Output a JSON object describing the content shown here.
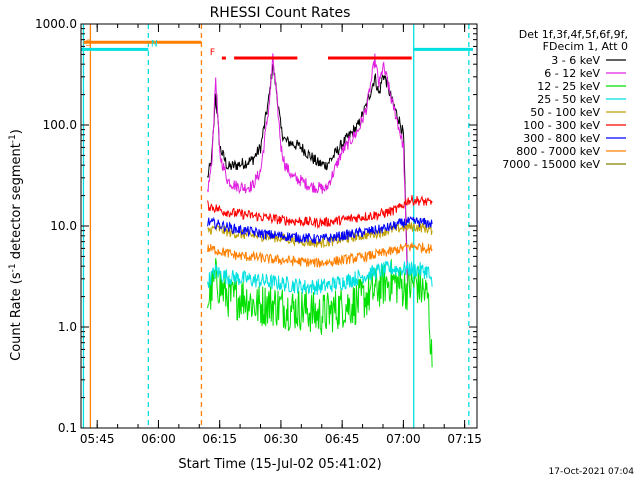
{
  "chart_data": {
    "type": "line",
    "title": "RHESSI Count Rates",
    "xlabel": "Start Time (15-Jul-02 05:41:02)",
    "ylabel_parts": [
      "Count Rate (s",
      "-1",
      " detector segment",
      "-1",
      ")"
    ],
    "yscale": "log",
    "ylim": [
      0.1,
      1000.0
    ],
    "xlim": [
      0.0,
      97.0
    ],
    "yticks": [
      {
        "v": 1000.0,
        "label": "1000.0"
      },
      {
        "v": 100.0,
        "label": "100.0"
      },
      {
        "v": 10.0,
        "label": "10.0"
      },
      {
        "v": 1.0,
        "label": "1.0"
      },
      {
        "v": 0.1,
        "label": "0.1"
      }
    ],
    "xticks": [
      {
        "v": 3.97,
        "label": "05:45"
      },
      {
        "v": 18.97,
        "label": "06:00"
      },
      {
        "v": 33.97,
        "label": "06:15"
      },
      {
        "v": 48.97,
        "label": "06:30"
      },
      {
        "v": 63.97,
        "label": "06:45"
      },
      {
        "v": 78.97,
        "label": "07:00"
      },
      {
        "v": 93.97,
        "label": "07:15"
      }
    ],
    "legend_header": [
      "Det 1f,3f,4f,5f,6f,9f,",
      "FDecim 1, Att 0"
    ],
    "legend_position": "right",
    "series": [
      {
        "name": "3 - 6 keV",
        "color": "#000000",
        "x": [
          31,
          32,
          33,
          34,
          36,
          38,
          40,
          42,
          44,
          46,
          47,
          48,
          49,
          50,
          52,
          54,
          56,
          58,
          60,
          62,
          64,
          66,
          68,
          70,
          72,
          73,
          74,
          75,
          76,
          77,
          78,
          79,
          80
        ],
        "y": [
          30,
          45,
          200,
          60,
          38,
          40,
          42,
          45,
          60,
          180,
          400,
          200,
          90,
          70,
          65,
          60,
          50,
          42,
          40,
          50,
          65,
          80,
          100,
          160,
          300,
          200,
          320,
          260,
          180,
          140,
          110,
          80,
          2.7
        ]
      },
      {
        "name": "6 - 12 keV",
        "color": "#e020e0",
        "x": [
          31,
          32,
          33,
          34,
          36,
          38,
          40,
          42,
          44,
          46,
          47,
          48,
          49,
          50,
          52,
          54,
          56,
          58,
          60,
          62,
          64,
          66,
          68,
          70,
          72,
          73,
          74,
          75,
          76,
          77,
          78,
          79,
          80
        ],
        "y": [
          22,
          40,
          300,
          50,
          28,
          25,
          24,
          25,
          35,
          150,
          450,
          180,
          60,
          40,
          30,
          28,
          25,
          24,
          23,
          35,
          55,
          70,
          90,
          150,
          450,
          250,
          380,
          280,
          180,
          130,
          90,
          60,
          2.5
        ]
      },
      {
        "name": "12 - 25 keV",
        "color": "#00e000",
        "x": [
          31,
          33,
          35,
          37,
          40,
          43,
          46,
          49,
          52,
          55,
          58,
          61,
          64,
          67,
          70,
          73,
          76,
          78,
          80,
          82,
          84,
          85,
          86
        ],
        "y": [
          1.8,
          3.0,
          2.2,
          1.9,
          2.0,
          1.6,
          1.7,
          1.6,
          1.5,
          1.5,
          1.3,
          1.4,
          1.6,
          1.7,
          2.0,
          2.5,
          2.9,
          2.6,
          2.4,
          2.8,
          2.2,
          2.0,
          0.4
        ]
      },
      {
        "name": "25 - 50 keV",
        "color": "#00e0e0",
        "x": [
          31,
          33,
          35,
          37,
          40,
          43,
          46,
          49,
          52,
          55,
          58,
          61,
          64,
          67,
          70,
          73,
          76,
          78,
          80,
          82,
          84,
          85,
          86
        ],
        "y": [
          2.8,
          3.6,
          3.2,
          3.1,
          3.0,
          2.9,
          2.8,
          2.7,
          2.6,
          2.5,
          2.5,
          2.6,
          2.8,
          3.0,
          3.3,
          3.6,
          3.8,
          3.7,
          3.8,
          3.7,
          3.6,
          3.6,
          2.5
        ]
      },
      {
        "name": "50 - 100 keV",
        "color": "#c0a000",
        "x": [
          31,
          33,
          35,
          37,
          40,
          43,
          46,
          49,
          52,
          55,
          58,
          61,
          64,
          67,
          70,
          73,
          76,
          78,
          80,
          82,
          84,
          85,
          86
        ],
        "y": [
          9.0,
          9.5,
          9.0,
          8.5,
          8.2,
          8.0,
          7.8,
          7.6,
          7.3,
          7.0,
          6.8,
          7.0,
          7.4,
          7.8,
          8.2,
          8.6,
          9.2,
          9.5,
          9.8,
          9.8,
          9.6,
          9.4,
          9.0
        ]
      },
      {
        "name": "100 - 300 keV",
        "color": "#ff0000",
        "x": [
          31,
          33,
          35,
          37,
          40,
          43,
          46,
          49,
          52,
          55,
          58,
          61,
          64,
          67,
          70,
          73,
          76,
          78,
          80,
          82,
          84,
          85,
          86
        ],
        "y": [
          16,
          15,
          14,
          13.5,
          13,
          12.5,
          12,
          11.5,
          11.2,
          11,
          10.8,
          11,
          11.5,
          12,
          12.5,
          13,
          14,
          15,
          18,
          18,
          17.5,
          17,
          17
        ]
      },
      {
        "name": "300 - 800 keV",
        "color": "#0000ff",
        "x": [
          31,
          33,
          35,
          37,
          40,
          43,
          46,
          49,
          52,
          55,
          58,
          61,
          64,
          67,
          70,
          73,
          76,
          78,
          80,
          82,
          84,
          85,
          86
        ],
        "y": [
          11,
          10.5,
          10,
          9.5,
          9.0,
          8.6,
          8.2,
          8.0,
          7.8,
          7.6,
          7.4,
          7.6,
          8.0,
          8.4,
          8.8,
          9.2,
          9.8,
          10.5,
          11,
          11,
          10.8,
          10.6,
          10.5
        ]
      },
      {
        "name": "800 - 7000 keV",
        "color": "#ff8000",
        "x": [
          31,
          33,
          35,
          37,
          40,
          43,
          46,
          49,
          52,
          55,
          58,
          61,
          64,
          67,
          70,
          73,
          76,
          78,
          80,
          82,
          84,
          85,
          86
        ],
        "y": [
          6.0,
          5.8,
          5.5,
          5.2,
          5.0,
          4.9,
          4.7,
          4.6,
          4.5,
          4.4,
          4.3,
          4.4,
          4.6,
          4.8,
          5.0,
          5.3,
          5.6,
          5.9,
          6.2,
          6.3,
          6.1,
          6.0,
          5.9
        ]
      },
      {
        "name": "7000 - 15000 keV",
        "color": "#808000",
        "x": [],
        "y": []
      }
    ],
    "flag_bars": [
      {
        "label": "S",
        "color": "#ff8000",
        "x": [
          0.6,
          29.5
        ],
        "y": 660
      },
      {
        "label": "N",
        "color": "#00e0e0",
        "x": [
          0.0,
          16.5
        ],
        "y": 560
      },
      {
        "label": "",
        "color": "#00e0e0",
        "x": [
          81.5,
          96.0
        ],
        "y": 560
      },
      {
        "label": "F",
        "color": "#ff0000",
        "x": [
          34.5,
          35.5
        ],
        "y": 460
      },
      {
        "label": "",
        "color": "#ff0000",
        "x": [
          37.5,
          53.0
        ],
        "y": 460
      },
      {
        "label": "",
        "color": "#ff0000",
        "x": [
          60.5,
          81.0
        ],
        "y": 460
      }
    ],
    "vertical_markers": [
      {
        "x": 0.6,
        "color": "#00e0e0",
        "dash": false
      },
      {
        "x": 2.3,
        "color": "#ff8000",
        "dash": false
      },
      {
        "x": 16.5,
        "color": "#00e0e0",
        "dash": true
      },
      {
        "x": 29.5,
        "color": "#ff8000",
        "dash": true
      },
      {
        "x": 81.5,
        "color": "#00e0e0",
        "dash": false
      },
      {
        "x": 95.0,
        "color": "#00e0e0",
        "dash": true
      }
    ]
  },
  "footer": {
    "date": "17-Oct-2021 07:04"
  }
}
